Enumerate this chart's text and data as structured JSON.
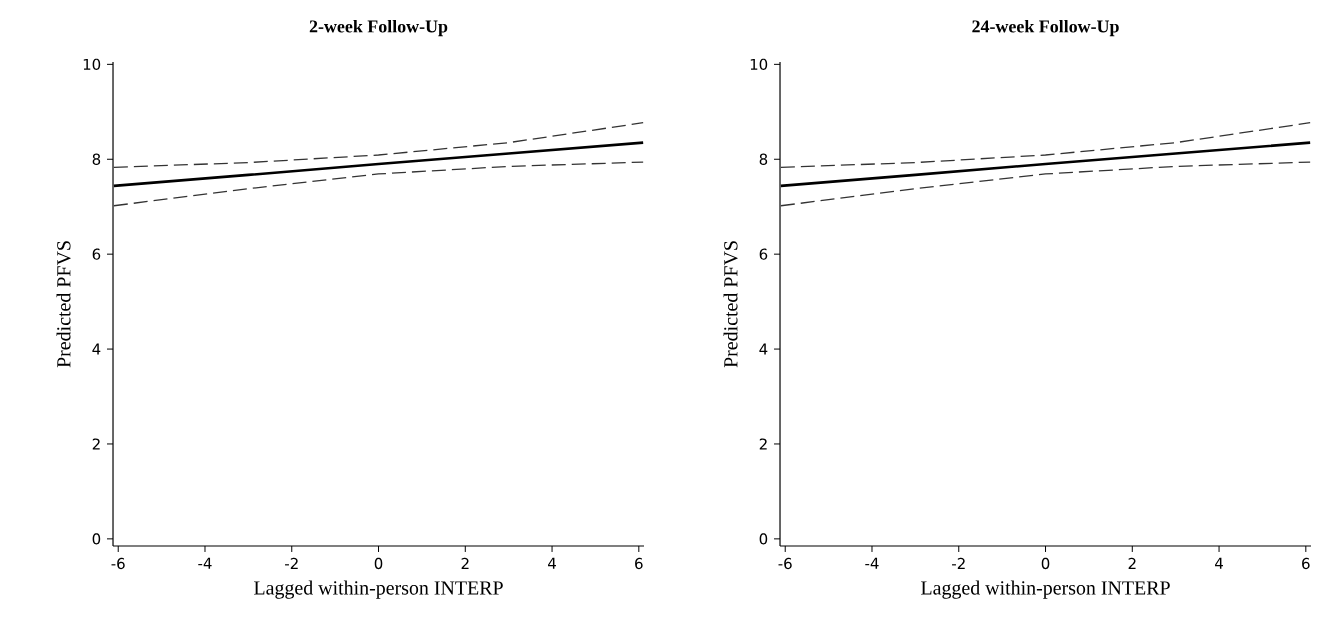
{
  "chart_data": [
    {
      "type": "line",
      "title": "2-week Follow-Up",
      "xlabel": "Lagged within-person INTERP",
      "ylabel": "Predicted PFVS",
      "x": [
        -6.1,
        -3,
        0,
        3,
        6.1
      ],
      "xlim": [
        -6.12,
        6.12
      ],
      "ylim": [
        -0.15,
        10.05
      ],
      "xticks": [
        -6,
        -4,
        -2,
        0,
        2,
        4,
        6
      ],
      "yticks": [
        0,
        2,
        4,
        6,
        8,
        10
      ],
      "series": [
        {
          "color": "#000000",
          "line_style": "solid",
          "values": [
            7.44,
            7.67,
            7.9,
            8.12,
            8.35
          ]
        },
        {
          "color": "#333333",
          "line_style": "dashed",
          "values": [
            7.83,
            7.93,
            8.09,
            8.35,
            8.77
          ]
        },
        {
          "color": "#333333",
          "line_style": "dashed",
          "values": [
            7.02,
            7.38,
            7.69,
            7.85,
            7.94
          ]
        }
      ]
    },
    {
      "type": "line",
      "title": "24-week Follow-Up",
      "xlabel": "Lagged within-person INTERP",
      "ylabel": "Predicted PFVS",
      "x": [
        -6.1,
        -3,
        0,
        3,
        6.1
      ],
      "xlim": [
        -6.12,
        6.12
      ],
      "ylim": [
        -0.15,
        10.05
      ],
      "xticks": [
        -6,
        -4,
        -2,
        0,
        2,
        4,
        6
      ],
      "yticks": [
        0,
        2,
        4,
        6,
        8,
        10
      ],
      "series": [
        {
          "color": "#000000",
          "line_style": "solid",
          "values": [
            7.44,
            7.67,
            7.9,
            8.12,
            8.35
          ]
        },
        {
          "color": "#333333",
          "line_style": "dashed",
          "values": [
            7.83,
            7.93,
            8.09,
            8.35,
            8.77
          ]
        },
        {
          "color": "#333333",
          "line_style": "dashed",
          "values": [
            7.02,
            7.38,
            7.69,
            7.85,
            7.94
          ]
        }
      ]
    }
  ]
}
